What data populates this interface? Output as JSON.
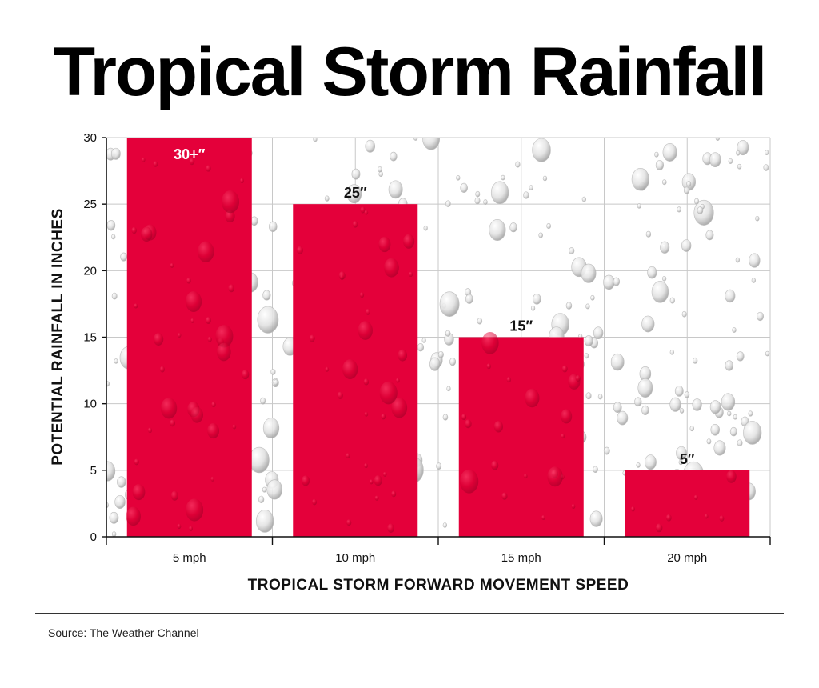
{
  "title": "Tropical Storm Rainfall",
  "source": "Source: The Weather Channel",
  "colors": {
    "bar": "#e4003a",
    "grid": "#c8c8c8",
    "axis": "#111111",
    "drop": "#b9b9b9"
  },
  "chart_data": {
    "type": "bar",
    "categories": [
      "5 mph",
      "10 mph",
      "15 mph",
      "20 mph"
    ],
    "values": [
      30,
      25,
      15,
      5
    ],
    "data_labels": [
      "30+″",
      "25″",
      "15″",
      "5″"
    ],
    "xlabel": "TROPICAL STORM FORWARD MOVEMENT SPEED",
    "ylabel": "POTENTIAL RAINFALL IN INCHES",
    "ylim": [
      0,
      30
    ],
    "yticks": [
      0,
      5,
      10,
      15,
      20,
      25,
      30
    ],
    "grid": true,
    "legend": "none"
  }
}
